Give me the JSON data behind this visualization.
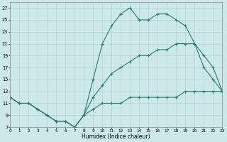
{
  "xlabel": "Humidex (Indice chaleur)",
  "xlim": [
    0,
    23
  ],
  "ylim": [
    7,
    28
  ],
  "yticks": [
    7,
    9,
    11,
    13,
    15,
    17,
    19,
    21,
    23,
    25,
    27
  ],
  "xticks": [
    0,
    1,
    2,
    3,
    4,
    5,
    6,
    7,
    8,
    9,
    10,
    11,
    12,
    13,
    14,
    15,
    16,
    17,
    18,
    19,
    20,
    21,
    22,
    23
  ],
  "bg_color": "#cce8ea",
  "grid_color": "#aacdd0",
  "line_color": "#2a7a72",
  "max_x": [
    0,
    1,
    2,
    3,
    4,
    5,
    6,
    7,
    8,
    9,
    10,
    11,
    12,
    13,
    14,
    15,
    16,
    17,
    18,
    19,
    20,
    21,
    22,
    23
  ],
  "max_y": [
    12,
    11,
    11,
    10,
    9,
    8,
    8,
    7,
    9,
    15,
    21,
    24,
    26,
    27,
    25,
    25,
    26,
    26,
    25,
    24,
    21,
    17,
    15,
    13
  ],
  "mean_x": [
    0,
    1,
    2,
    3,
    4,
    5,
    6,
    7,
    8,
    9,
    10,
    11,
    12,
    13,
    14,
    15,
    16,
    17,
    18,
    19,
    20,
    21,
    22,
    23
  ],
  "mean_y": [
    12,
    11,
    11,
    10,
    9,
    8,
    8,
    7,
    9,
    12,
    14,
    16,
    17,
    18,
    19,
    19,
    20,
    20,
    21,
    21,
    21,
    19,
    17,
    13
  ],
  "min_x": [
    0,
    1,
    2,
    3,
    4,
    5,
    6,
    7,
    8,
    9,
    10,
    11,
    12,
    13,
    14,
    15,
    16,
    17,
    18,
    19,
    20,
    21,
    22,
    23
  ],
  "min_y": [
    12,
    11,
    11,
    10,
    9,
    8,
    8,
    7,
    9,
    10,
    11,
    11,
    11,
    12,
    12,
    12,
    12,
    12,
    12,
    13,
    13,
    13,
    13,
    13
  ]
}
